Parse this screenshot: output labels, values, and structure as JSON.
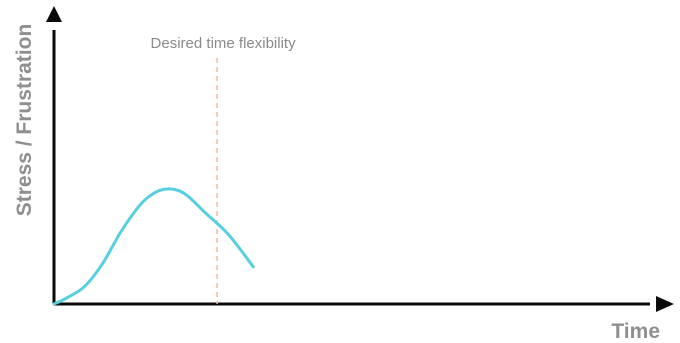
{
  "chart_data": {
    "type": "line",
    "title": "",
    "xlabel": "Time",
    "ylabel": "Stress / Frustration",
    "xlim": [
      0,
      100
    ],
    "ylim": [
      0,
      100
    ],
    "x_ticks": [],
    "y_ticks": [],
    "grid": false,
    "legend": "none",
    "series": [
      {
        "values": [
          {
            "x": 0,
            "y": 0
          },
          {
            "x": 2,
            "y": 2
          },
          {
            "x": 5,
            "y": 6
          },
          {
            "x": 8,
            "y": 14
          },
          {
            "x": 11,
            "y": 25
          },
          {
            "x": 14,
            "y": 34
          },
          {
            "x": 16,
            "y": 38
          },
          {
            "x": 18,
            "y": 40
          },
          {
            "x": 20,
            "y": 40
          },
          {
            "x": 22,
            "y": 38
          },
          {
            "x": 25,
            "y": 32
          },
          {
            "x": 29,
            "y": 24
          },
          {
            "x": 33,
            "y": 13
          }
        ]
      }
    ],
    "annotations": [
      {
        "label": "Desired time flexibility",
        "x": 27
      }
    ],
    "colors": {
      "curve": "#56cfe1",
      "marker": "#f4b79e",
      "axis": "#0a0a0a",
      "label": "#8f8f8f"
    }
  }
}
